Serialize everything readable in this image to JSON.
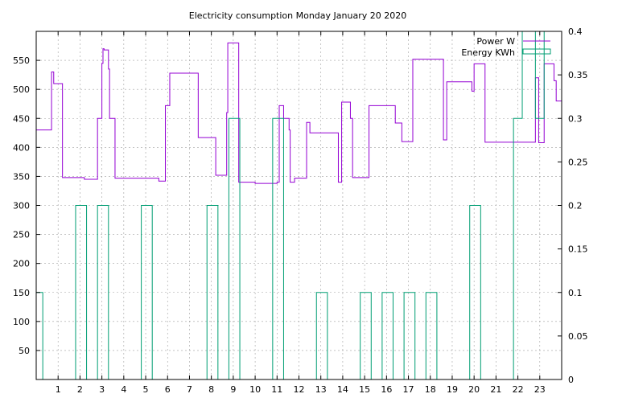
{
  "chart_data": {
    "type": "line",
    "title": "Electricity consumption Monday January 20 2020",
    "x_ticks": [
      1,
      2,
      3,
      4,
      5,
      6,
      7,
      8,
      9,
      10,
      11,
      12,
      13,
      14,
      15,
      16,
      17,
      18,
      19,
      20,
      21,
      22,
      23
    ],
    "xlim": [
      0,
      24
    ],
    "y_left": {
      "ylim": [
        0,
        600
      ],
      "ticks": [
        50,
        100,
        150,
        200,
        250,
        300,
        350,
        400,
        450,
        500,
        550
      ]
    },
    "y_right": {
      "ylim": [
        0,
        0.4
      ],
      "ticks": [
        0,
        0.05,
        0.1,
        0.15,
        0.2,
        0.25,
        0.3,
        0.35,
        0.4
      ]
    },
    "grid": true,
    "legend_position": "top-right",
    "series": [
      {
        "name": "Power W",
        "axis": "left",
        "color": "#9400d3",
        "step": true,
        "x": [
          0,
          0.7,
          0.8,
          1.2,
          2.2,
          2.8,
          3.0,
          3.05,
          3.1,
          3.3,
          3.35,
          3.6,
          4.7,
          5.6,
          5.9,
          6.1,
          7.4,
          8.2,
          8.7,
          8.75,
          9.25,
          10.0,
          11.0,
          11.1,
          11.3,
          11.55,
          11.6,
          11.8,
          12.35,
          12.5,
          13.8,
          13.95,
          14.35,
          14.45,
          15.1,
          15.2,
          16.4,
          16.7,
          17.2,
          18.6,
          18.75,
          19.9,
          20.0,
          20.5,
          22.2,
          22.8,
          22.95,
          23.0,
          23.2,
          23.65,
          23.75,
          24
        ],
        "values": [
          430,
          530,
          510,
          348,
          345,
          450,
          545,
          570,
          568,
          535,
          450,
          347,
          347,
          342,
          472,
          528,
          417,
          352,
          460,
          580,
          340,
          338,
          340,
          472,
          450,
          430,
          340,
          347,
          443,
          425,
          340,
          478,
          450,
          348,
          348,
          472,
          442,
          410,
          552,
          413,
          513,
          497,
          544,
          409,
          409,
          520,
          408,
          408,
          544,
          515,
          480,
          403
        ]
      },
      {
        "name": "Energy KWh",
        "axis": "right",
        "color": "#009e73",
        "step": true,
        "x": [
          0,
          0.3,
          1.8,
          2.3,
          2.8,
          3.3,
          4.8,
          5.3,
          7.8,
          8.3,
          8.8,
          9.3,
          10.8,
          11.3,
          12.8,
          13.3,
          14.8,
          15.3,
          15.8,
          16.3,
          16.8,
          17.3,
          17.8,
          18.3,
          19.8,
          20.3,
          21.8,
          22.2,
          22.8,
          23.2,
          23.4
        ],
        "values": [
          0.1,
          0,
          0.2,
          0,
          0.2,
          0,
          0.2,
          0,
          0.2,
          0,
          0.3,
          0,
          0.3,
          0,
          0.1,
          0,
          0.1,
          0,
          0.1,
          0,
          0.1,
          0,
          0.1,
          0,
          0.2,
          0,
          0.3,
          0.4,
          0.3,
          0.4,
          0.4
        ]
      }
    ]
  }
}
